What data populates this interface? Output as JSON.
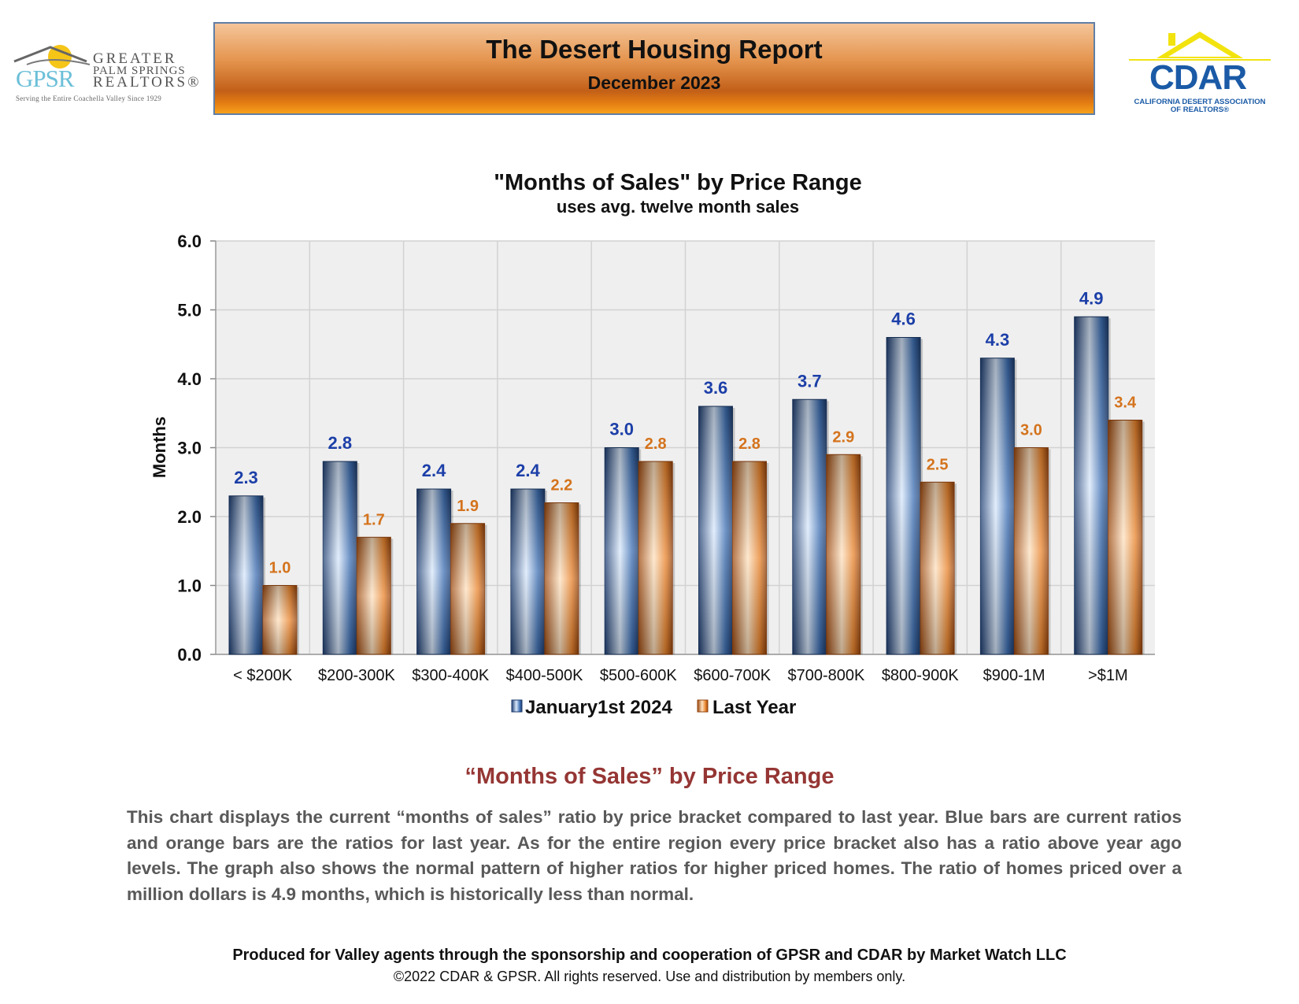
{
  "header": {
    "title": "The Desert Housing Report",
    "subtitle": "December 2023"
  },
  "logos": {
    "gpsr": {
      "letters": "GPSR",
      "word1": "GREATER",
      "word2": "PALM SPRINGS",
      "word3": "REALTORS®",
      "tagline": "Serving the Entire Coachella Valley Since 1929"
    },
    "cdar": {
      "name": "CDAR",
      "sub1": "CALIFORNIA DESERT ASSOCIATION",
      "sub2": "OF REALTORS®"
    }
  },
  "chart_data": {
    "type": "bar",
    "title": "\"Months of Sales\" by Price Range",
    "subtitle": "uses avg. twelve month sales",
    "xlabel": "",
    "ylabel": "Months",
    "ylim": [
      0,
      6
    ],
    "yticks": [
      "0.0",
      "1.0",
      "2.0",
      "3.0",
      "4.0",
      "5.0",
      "6.0"
    ],
    "grid": true,
    "legend_position": "bottom",
    "categories": [
      "< $200K",
      "$200-300K",
      "$300-400K",
      "$400-500K",
      "$500-600K",
      "$600-700K",
      "$700-800K",
      "$800-900K",
      "$900-1M",
      ">$1M"
    ],
    "series": [
      {
        "name": "January1st 2024",
        "color": "#2e5c9a",
        "values": [
          2.3,
          2.8,
          2.4,
          2.4,
          3.0,
          3.6,
          3.7,
          4.6,
          4.3,
          4.9
        ]
      },
      {
        "name": "Last Year",
        "color": "#e07b24",
        "values": [
          1.0,
          1.7,
          1.9,
          2.2,
          2.8,
          2.8,
          2.9,
          2.5,
          3.0,
          3.4
        ]
      }
    ]
  },
  "section": {
    "heading": "“Months of Sales” by Price Range",
    "description": "This chart displays the current “months of sales” ratio by price bracket compared to last year. Blue bars are current ratios and orange bars are the ratios for last year. As for the entire region every price bracket also has a ratio above year ago levels. The graph also shows the normal pattern of higher ratios for higher priced homes. The ratio of homes priced over a million dollars is 4.9 months, which is historically less than normal."
  },
  "footer": {
    "line1": "Produced for Valley agents through the sponsorship and cooperation of GPSR and CDAR by Market Watch LLC",
    "line2": "©2022 CDAR & GPSR.  All rights reserved.  Use and distribution by members only."
  }
}
